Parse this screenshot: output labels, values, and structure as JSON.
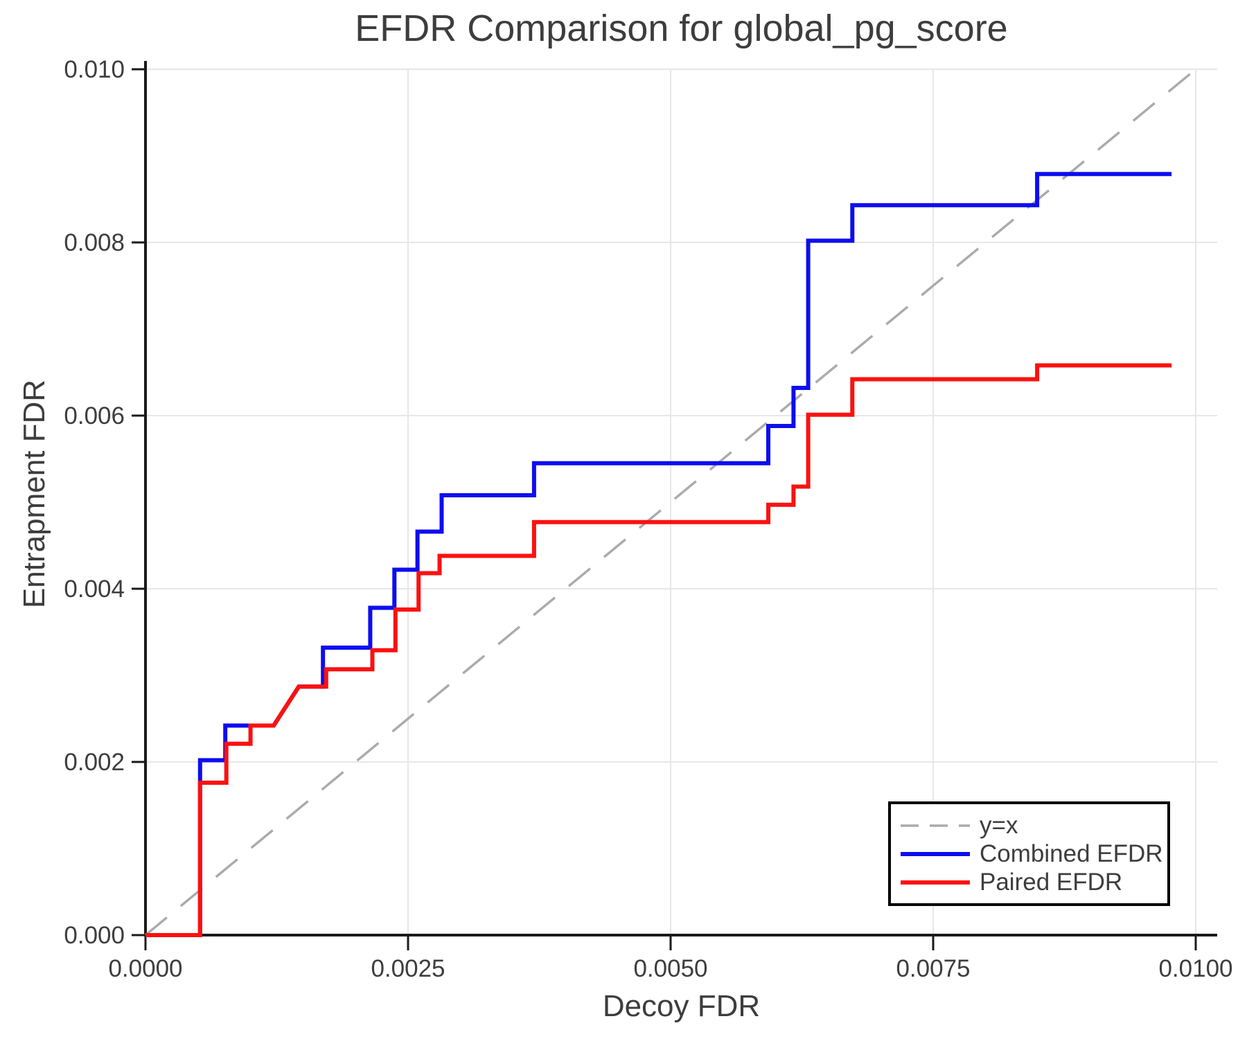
{
  "chart_data": {
    "type": "line",
    "subtype": "step",
    "title": "EFDR Comparison for global_pg_score",
    "xlabel": "Decoy FDR",
    "ylabel": "Entrapment FDR",
    "xlim": [
      0.0,
      0.0102
    ],
    "ylim": [
      0.0,
      0.01
    ],
    "grid": true,
    "legend_position": "lower right",
    "background": "#ffffff",
    "grid_color": "#e7e7e7",
    "axis_color": "#1a1a1a",
    "text_color": "#3d3d3d",
    "x_ticks": {
      "values": [
        0.0,
        0.0025,
        0.005,
        0.0075,
        0.01
      ],
      "labels": [
        "0.0000",
        "0.0025",
        "0.0050",
        "0.0075",
        "0.0100"
      ]
    },
    "y_ticks": {
      "values": [
        0.0,
        0.002,
        0.004,
        0.006,
        0.008,
        0.01
      ],
      "labels": [
        "0.000",
        "0.002",
        "0.004",
        "0.006",
        "0.008",
        "0.010"
      ]
    },
    "series": [
      {
        "name": "y=x",
        "color": "#ababab",
        "style": "dashed",
        "width": 3.5,
        "points": [
          [
            0.0,
            0.0
          ],
          [
            0.01,
            0.01
          ]
        ]
      },
      {
        "name": "Combined EFDR",
        "color": "#0d0df0",
        "style": "solid",
        "width": 6,
        "points": [
          [
            0.0,
            0.0
          ],
          [
            0.00052,
            0.0
          ],
          [
            0.00052,
            0.00202
          ],
          [
            0.00076,
            0.00202
          ],
          [
            0.00076,
            0.00242
          ],
          [
            0.00122,
            0.00242
          ],
          [
            0.00146,
            0.00287
          ],
          [
            0.00169,
            0.00287
          ],
          [
            0.00169,
            0.00332
          ],
          [
            0.00214,
            0.00332
          ],
          [
            0.00214,
            0.00378
          ],
          [
            0.00237,
            0.00378
          ],
          [
            0.00237,
            0.00422
          ],
          [
            0.00259,
            0.00422
          ],
          [
            0.00259,
            0.00466
          ],
          [
            0.00282,
            0.00466
          ],
          [
            0.00282,
            0.00508
          ],
          [
            0.0037,
            0.00508
          ],
          [
            0.0037,
            0.00545
          ],
          [
            0.00593,
            0.00545
          ],
          [
            0.00593,
            0.00588
          ],
          [
            0.00617,
            0.00588
          ],
          [
            0.00617,
            0.00632
          ],
          [
            0.00631,
            0.00632
          ],
          [
            0.00631,
            0.00802
          ],
          [
            0.00673,
            0.00802
          ],
          [
            0.00673,
            0.00843
          ],
          [
            0.00849,
            0.00843
          ],
          [
            0.00849,
            0.00879
          ],
          [
            0.00977,
            0.00879
          ]
        ]
      },
      {
        "name": "Paired EFDR",
        "color": "#fb1111",
        "style": "solid",
        "width": 6,
        "points": [
          [
            0.0,
            0.0
          ],
          [
            0.00052,
            0.0
          ],
          [
            0.00052,
            0.00176
          ],
          [
            0.00077,
            0.00176
          ],
          [
            0.00077,
            0.00221
          ],
          [
            0.001,
            0.00221
          ],
          [
            0.001,
            0.00242
          ],
          [
            0.00122,
            0.00242
          ],
          [
            0.00146,
            0.00287
          ],
          [
            0.00172,
            0.00287
          ],
          [
            0.00172,
            0.00307
          ],
          [
            0.00216,
            0.00307
          ],
          [
            0.00216,
            0.00329
          ],
          [
            0.00238,
            0.00329
          ],
          [
            0.00238,
            0.00376
          ],
          [
            0.0026,
            0.00376
          ],
          [
            0.0026,
            0.00418
          ],
          [
            0.0028,
            0.00418
          ],
          [
            0.0028,
            0.00438
          ],
          [
            0.0037,
            0.00438
          ],
          [
            0.0037,
            0.00477
          ],
          [
            0.00593,
            0.00477
          ],
          [
            0.00593,
            0.00497
          ],
          [
            0.00617,
            0.00497
          ],
          [
            0.00617,
            0.00518
          ],
          [
            0.00631,
            0.00518
          ],
          [
            0.00631,
            0.00601
          ],
          [
            0.00673,
            0.00601
          ],
          [
            0.00673,
            0.00642
          ],
          [
            0.00849,
            0.00642
          ],
          [
            0.00849,
            0.00658
          ],
          [
            0.00977,
            0.00658
          ]
        ]
      }
    ]
  },
  "legend": {
    "items": [
      {
        "label": "y=x"
      },
      {
        "label": "Combined EFDR"
      },
      {
        "label": "Paired EFDR"
      }
    ]
  }
}
